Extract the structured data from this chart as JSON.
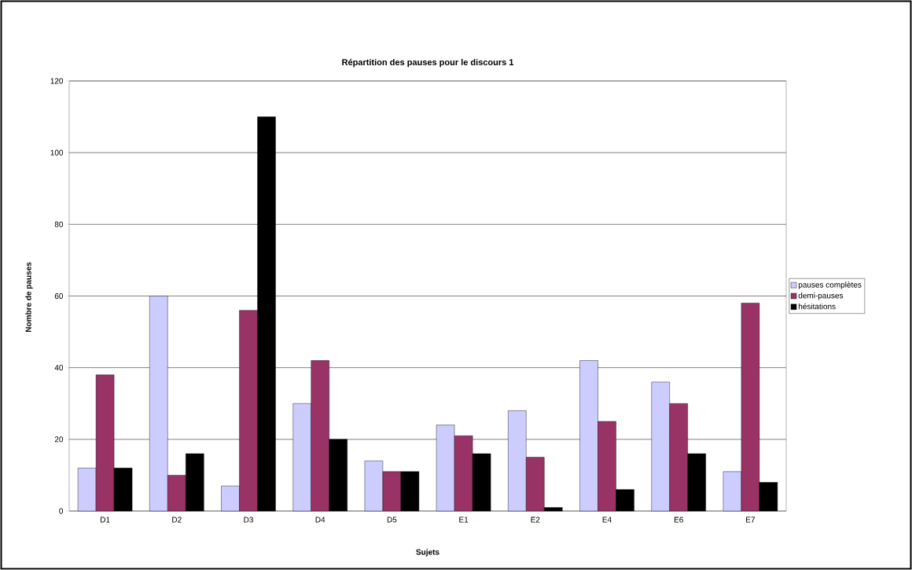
{
  "chart_data": {
    "type": "bar",
    "title": "Répartition des pauses pour le discours 1",
    "xlabel": "Sujets",
    "ylabel": "Nombre de pauses",
    "categories": [
      "D1",
      "D2",
      "D3",
      "D4",
      "D5",
      "E1",
      "E2",
      "E4",
      "E6",
      "E7"
    ],
    "series": [
      {
        "name": "pauses complètes",
        "color": "#ccccff",
        "values": [
          12,
          60,
          7,
          30,
          14,
          24,
          28,
          42,
          36,
          11
        ]
      },
      {
        "name": "demi-pauses",
        "color": "#993366",
        "values": [
          38,
          10,
          56,
          42,
          11,
          21,
          15,
          25,
          30,
          58
        ]
      },
      {
        "name": "hésitations",
        "color": "#000000",
        "values": [
          12,
          16,
          110,
          20,
          11,
          16,
          1,
          6,
          16,
          8
        ]
      }
    ],
    "ylim": [
      0,
      120
    ],
    "yticks": [
      0,
      20,
      40,
      60,
      80,
      100,
      120
    ],
    "grid": "y",
    "legend": "right"
  }
}
